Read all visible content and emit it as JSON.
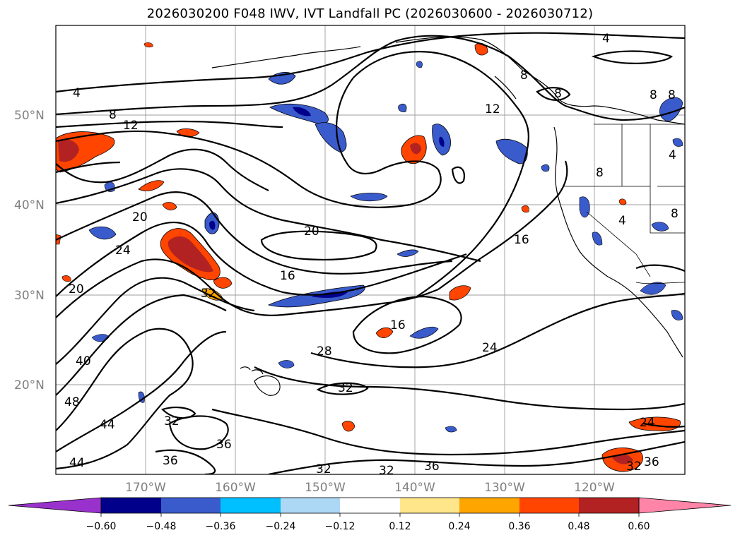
{
  "title": "2026030200 F048 IWV, IVT Landfall PC (2026030600 - 2026030712)",
  "lat_labels": [
    "50°N",
    "40°N",
    "30°N",
    "20°N"
  ],
  "lon_labels": [
    "170°W",
    "160°W",
    "150°W",
    "140°W",
    "130°W",
    "120°W"
  ],
  "contour_labels": {
    "c4_ne": "4",
    "c4_nw": "4",
    "c8_nw": "8",
    "c8_ak1": "8",
    "c8_ak2": "8",
    "c8_bc": "8",
    "c8_wa": "8",
    "c8_or": "8",
    "c8_nv": "8",
    "c4_ca": "4",
    "c4_nv": "4",
    "c12_w": "12",
    "c12_n": "12",
    "c16_e": "16",
    "c16_mid": "16",
    "c16_s": "16",
    "c20_w1": "20",
    "c20_mid": "20",
    "c20_w2": "20",
    "c24_w": "24",
    "c24_s": "24",
    "c28": "28",
    "c32_w": "32",
    "c32_m": "32",
    "c32_s1": "32",
    "c32_s2": "32",
    "c32_sw": "32",
    "c32_se": "32",
    "c36_sw": "36",
    "c36_s": "36",
    "c36_m": "36",
    "c36_se": "36",
    "c40": "40",
    "c44_w": "44",
    "c44_s": "44",
    "c48": "48",
    "c24_se": "24"
  },
  "colorbar": {
    "ticks": [
      "−0.60",
      "−0.48",
      "−0.36",
      "−0.24",
      "−0.12",
      "0.12",
      "0.24",
      "0.36",
      "0.48",
      "0.60"
    ],
    "colors": [
      "#9932cc",
      "#00008b",
      "#3a5bcc",
      "#00bfff",
      "#add8f5",
      "#ffffff",
      "#ffe68a",
      "#ffa500",
      "#ff4500",
      "#b22222",
      "#ff85a8"
    ]
  },
  "colors": {
    "neg_strong": "#00008b",
    "neg_mid": "#3a5bcc",
    "neg_light": "#00bfff",
    "pos_light": "#ffa500",
    "pos_mid": "#ff4500",
    "pos_strong": "#b22222",
    "pos_pale": "#ffe68a"
  }
}
